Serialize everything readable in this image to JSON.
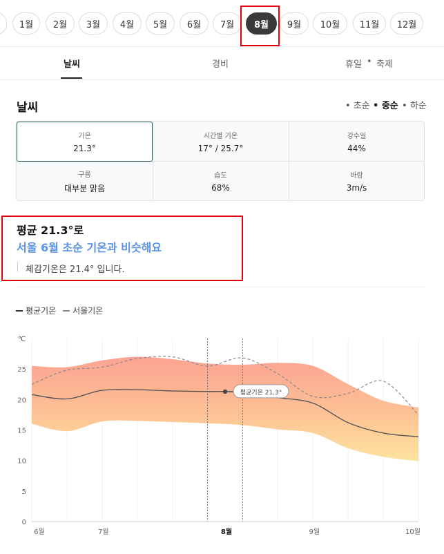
{
  "months": [
    "1월",
    "2월",
    "3월",
    "4월",
    "5월",
    "6월",
    "7월",
    "8월",
    "9월",
    "10월",
    "11월",
    "12월"
  ],
  "selected_month": "8월",
  "tabs": {
    "weather": "날씨",
    "cost": "경비",
    "holiday": "휴일",
    "festival": "축제"
  },
  "weather": {
    "title": "날씨",
    "periods": [
      "초순",
      "중순",
      "하순"
    ],
    "active_period": "중순",
    "stats": [
      {
        "label": "기온",
        "value": "21.3°"
      },
      {
        "label": "시간별 기온",
        "value": "17° / 25.7°"
      },
      {
        "label": "강수일",
        "value": "44%"
      },
      {
        "label": "구름",
        "value": "대부분 맑음"
      },
      {
        "label": "습도",
        "value": "68%"
      },
      {
        "label": "바람",
        "value": "3m/s"
      }
    ]
  },
  "summary": {
    "line1": "평균 21.3°로",
    "line2": "서울 6월 초순 기온과 비슷해요",
    "line3": "체감기온은 21.4° 입니다."
  },
  "legend": {
    "avg": "평균기온",
    "seoul": "서울기온"
  },
  "colors": {
    "accent": "#5b93e8",
    "highlight": "#e0000f",
    "chip_active": "#3a3a3a"
  },
  "chart_data": {
    "type": "area",
    "ylabel": "℃",
    "ylim": [
      0,
      30
    ],
    "yticks": [
      0,
      5,
      10,
      15,
      20,
      25
    ],
    "x_labels": [
      "6월",
      "7월",
      "8월",
      "9월",
      "10월"
    ],
    "x_label_pos": [
      0,
      1,
      2.75,
      4,
      5.5
    ],
    "x_range": [
      0,
      5.5
    ],
    "selected_range": [
      2.5,
      3.0
    ],
    "annotation": {
      "x": 2.75,
      "y": 21.3,
      "text": "평균기온 21.3°"
    },
    "band_high": {
      "x": [
        0,
        0.5,
        1,
        1.5,
        2,
        2.5,
        3,
        3.5,
        4,
        4.5,
        5,
        5.5
      ],
      "y": [
        25.5,
        25.3,
        26.4,
        27.0,
        26.6,
        25.9,
        25.7,
        26.0,
        25.5,
        22.5,
        19.8,
        18.7
      ]
    },
    "band_low": {
      "x": [
        0,
        0.5,
        1,
        1.5,
        2,
        2.5,
        3,
        3.5,
        4,
        4.5,
        5,
        5.5
      ],
      "y": [
        16.0,
        14.8,
        16.4,
        16.5,
        16.3,
        16.1,
        15.8,
        15.1,
        14.5,
        12.0,
        10.6,
        9.9
      ]
    },
    "series": [
      {
        "name": "평균기온",
        "x": [
          0,
          0.5,
          1,
          1.5,
          2,
          2.5,
          2.75,
          3,
          3.5,
          4,
          4.5,
          5,
          5.5
        ],
        "y": [
          20.8,
          20.1,
          21.5,
          21.6,
          21.4,
          21.3,
          21.3,
          21.1,
          20.3,
          19.4,
          16.2,
          14.5,
          13.9
        ]
      },
      {
        "name": "서울기온",
        "x": [
          0,
          0.5,
          1,
          1.5,
          2,
          2.5,
          3,
          3.5,
          4,
          4.5,
          5,
          5.5
        ],
        "y": [
          22.5,
          24.8,
          25.3,
          26.7,
          27.0,
          25.5,
          26.8,
          24.2,
          20.5,
          21.0,
          23.0,
          17.5
        ]
      }
    ]
  }
}
